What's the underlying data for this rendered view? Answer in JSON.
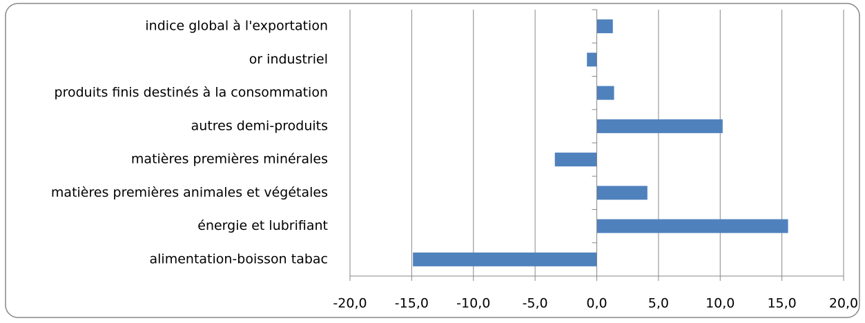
{
  "chart_data": {
    "type": "bar",
    "orientation": "horizontal",
    "categories": [
      "indice global à l'exportation",
      "or industriel",
      "produits finis destinés à la consommation",
      "autres demi-produits",
      "matières premières minérales",
      "matières premières animales et végétales",
      "énergie et lubrifiant",
      "alimentation-boisson tabac"
    ],
    "values": [
      1.3,
      -0.8,
      1.4,
      10.2,
      -3.4,
      4.1,
      15.5,
      -14.9
    ],
    "color": "#4f81bd",
    "xlim": [
      -20,
      20
    ],
    "xticks": [
      {
        "value": -20,
        "label": "-20,0"
      },
      {
        "value": -15,
        "label": "-15,0"
      },
      {
        "value": -10,
        "label": "-10,0"
      },
      {
        "value": -5,
        "label": "-5,0"
      },
      {
        "value": 0,
        "label": "0,0"
      },
      {
        "value": 5,
        "label": "5,0"
      },
      {
        "value": 10,
        "label": "10,0"
      },
      {
        "value": 15,
        "label": "15,0"
      },
      {
        "value": 20,
        "label": "20,0"
      }
    ],
    "grid": true
  }
}
